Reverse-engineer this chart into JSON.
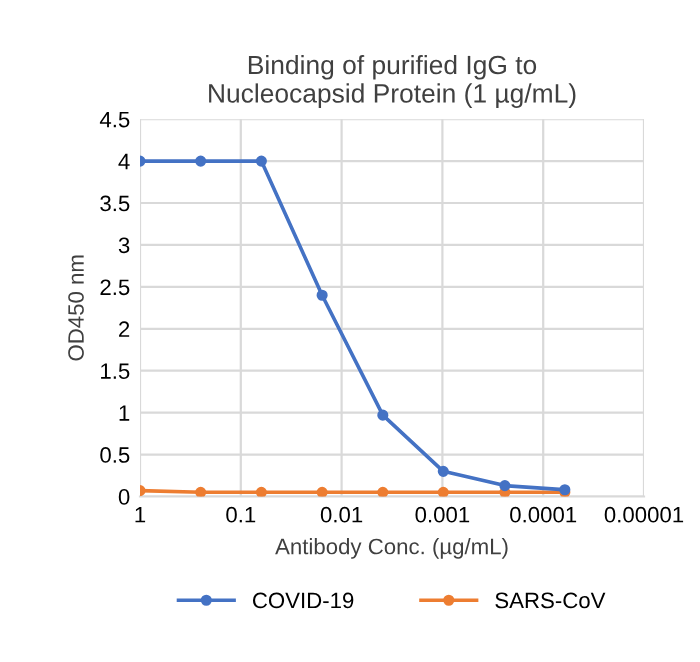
{
  "chart_data": {
    "type": "line",
    "title": "Binding of purified IgG to\nNucleocapsid Protein (1 µg/mL)",
    "xlabel": "Antibody Conc. (µg/mL)",
    "ylabel": "OD450 nm",
    "log": "x",
    "xlim": [
      1,
      1e-05
    ],
    "xticks": [
      1,
      0.1,
      0.01,
      0.001,
      {
        "value": 0.0001,
        "label": "0.0001"
      },
      {
        "value": 1e-05,
        "label": "0.00001"
      }
    ],
    "ylim": [
      0,
      4.5
    ],
    "yticks": [
      0,
      0.5,
      1,
      1.5,
      2,
      2.5,
      3,
      3.5,
      4,
      4.5
    ],
    "grid": true,
    "legend": "bottom",
    "marker": "circle",
    "line_style": "solid",
    "x": [
      1,
      0.25,
      0.0625,
      0.0156,
      0.0039,
      0.00098,
      0.00024,
      6.1e-05
    ],
    "series": [
      {
        "name": "COVID-19",
        "color": "#4472c4",
        "values": [
          4.0,
          4.0,
          4.0,
          2.4,
          0.97,
          0.3,
          0.13,
          0.08
        ]
      },
      {
        "name": "SARS-CoV",
        "color": "#ed7d31",
        "values": [
          0.07,
          0.05,
          0.05,
          0.05,
          0.05,
          0.05,
          0.05,
          0.05
        ]
      }
    ]
  }
}
